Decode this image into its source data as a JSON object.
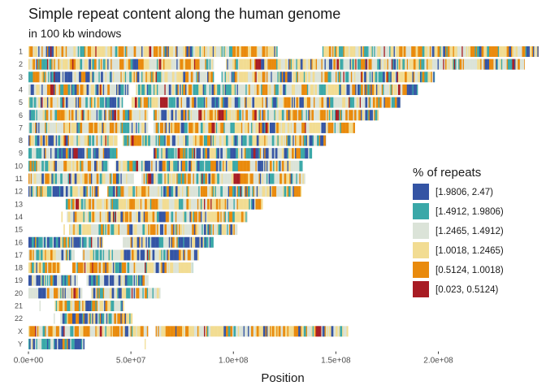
{
  "chart_data": {
    "type": "heatmap",
    "title": "Simple repeat content along the human genome",
    "subtitle": "in 100 kb windows",
    "xlabel": "Position",
    "ylabel": "",
    "xlim": [
      0,
      248956422
    ],
    "x_ticks": [
      0,
      50000000,
      100000000,
      150000000,
      200000000
    ],
    "x_tick_labels": [
      "0.0e+00",
      "5.0e+07",
      "1.0e+08",
      "1.5e+08",
      "2.0e+08"
    ],
    "grid": false,
    "legend_title": "% of repeats",
    "legend_position": "right",
    "categories": [
      {
        "label": "[1.9806, 2.47)",
        "color": "#3454a4"
      },
      {
        "label": "[1.4912, 1.9806)",
        "color": "#3aa8a8"
      },
      {
        "label": "[1.2465, 1.4912)",
        "color": "#dbe3d8"
      },
      {
        "label": "[1.0018, 1.2465)",
        "color": "#f2dc92"
      },
      {
        "label": "[0.5124, 1.0018)",
        "color": "#e98a0c"
      },
      {
        "label": "[0.023, 0.5124)",
        "color": "#a81c24"
      }
    ],
    "chromosomes": [
      {
        "name": "1",
        "length": 248956422,
        "gaps": [
          [
            121000000,
            143000000
          ]
        ],
        "dominant": "orange"
      },
      {
        "name": "2",
        "length": 242193529,
        "gaps": [
          [
            90000000,
            96000000
          ]
        ],
        "dominant": "orange"
      },
      {
        "name": "3",
        "length": 198295559,
        "gaps": [
          [
            90000000,
            94000000
          ]
        ],
        "dominant": "mixed"
      },
      {
        "name": "4",
        "length": 190214555,
        "gaps": [
          [
            49000000,
            52000000
          ]
        ],
        "dominant": "mixed"
      },
      {
        "name": "5",
        "length": 181538259,
        "gaps": [
          [
            46000000,
            50000000
          ]
        ],
        "dominant": "mixed"
      },
      {
        "name": "6",
        "length": 170805979,
        "gaps": [
          [
            58000000,
            61000000
          ]
        ],
        "dominant": "orange"
      },
      {
        "name": "7",
        "length": 159345973,
        "gaps": [
          [
            58000000,
            61000000
          ]
        ],
        "dominant": "orange"
      },
      {
        "name": "8",
        "length": 145138636,
        "gaps": [
          [
            43000000,
            46000000
          ]
        ],
        "dominant": "mixed"
      },
      {
        "name": "9",
        "length": 138394717,
        "gaps": [
          [
            43000000,
            61000000
          ]
        ],
        "dominant": "blue"
      },
      {
        "name": "10",
        "length": 133797422,
        "gaps": [
          [
            39000000,
            42000000
          ]
        ],
        "dominant": "mixed"
      },
      {
        "name": "11",
        "length": 135086622,
        "gaps": [
          [
            51000000,
            55000000
          ]
        ],
        "dominant": "orange"
      },
      {
        "name": "12",
        "length": 133275309,
        "gaps": [
          [
            34000000,
            38000000
          ]
        ],
        "dominant": "mixed"
      },
      {
        "name": "13",
        "length": 114364328,
        "gaps": [
          [
            0,
            18000000
          ]
        ],
        "dominant": "orange"
      },
      {
        "name": "14",
        "length": 107043718,
        "gaps": [
          [
            0,
            16000000
          ],
          [
            16500000,
            18500000
          ]
        ],
        "dominant": "orange"
      },
      {
        "name": "15",
        "length": 101991189,
        "gaps": [
          [
            0,
            17000000
          ],
          [
            17500000,
            19500000
          ]
        ],
        "dominant": "orange"
      },
      {
        "name": "16",
        "length": 90338345,
        "gaps": [
          [
            36000000,
            46000000
          ]
        ],
        "dominant": "blue"
      },
      {
        "name": "17",
        "length": 83257441,
        "gaps": [
          [
            22000000,
            26000000
          ]
        ],
        "dominant": "mixed"
      },
      {
        "name": "18",
        "length": 80373285,
        "gaps": [
          [
            15000000,
            21000000
          ]
        ],
        "dominant": "orange"
      },
      {
        "name": "19",
        "length": 58617616,
        "gaps": [
          [
            24000000,
            28000000
          ]
        ],
        "dominant": "blue"
      },
      {
        "name": "20",
        "length": 64444167,
        "gaps": [
          [
            26000000,
            30000000
          ]
        ],
        "dominant": "mixed"
      },
      {
        "name": "21",
        "length": 46709983,
        "gaps": [
          [
            0,
            5000000
          ],
          [
            5500000,
            12500000
          ]
        ],
        "dominant": "mixed"
      },
      {
        "name": "22",
        "length": 50818468,
        "gaps": [
          [
            0,
            12000000
          ],
          [
            12500000,
            15500000
          ]
        ],
        "dominant": "mixed"
      },
      {
        "name": "X",
        "length": 156040895,
        "gaps": [
          [
            58000000,
            62000000
          ]
        ],
        "dominant": "orange"
      },
      {
        "name": "Y",
        "length": 57227415,
        "gaps": [
          [
            27000000,
            56500000
          ]
        ],
        "dominant": "blue"
      }
    ]
  }
}
